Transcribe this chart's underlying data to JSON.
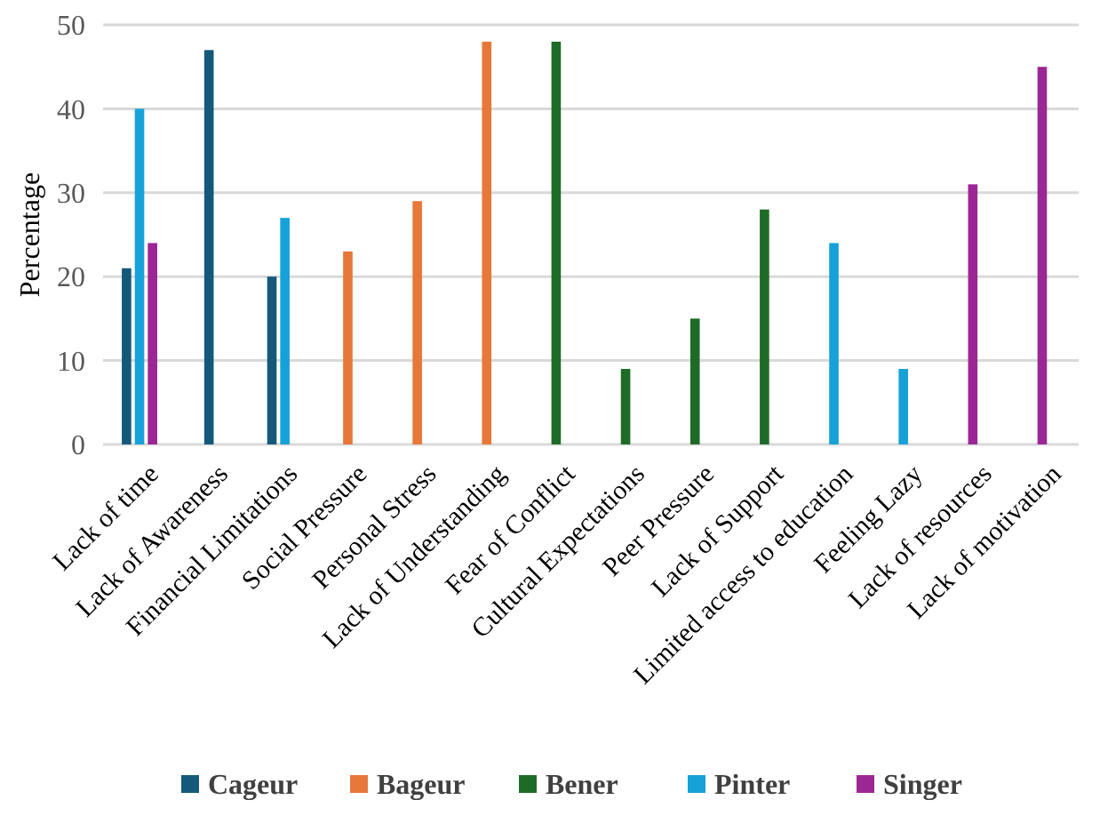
{
  "chart_data": {
    "type": "bar",
    "ylabel": "Percentage",
    "categories": [
      "Lack of time",
      "Lack of Awareness",
      "Financial Limitations",
      "Social Pressure",
      "Personal Stress",
      "Lack of Understanding",
      "Fear of Conflict",
      "Cultural Expectations",
      "Peer Pressure",
      "Lack of Support",
      "Limited access to education",
      "Feeling Lazy",
      "Lack of resources",
      "Lack of motivation"
    ],
    "series": [
      {
        "name": "Cageur",
        "color": "#15597a",
        "values": [
          21,
          47,
          20,
          null,
          null,
          null,
          null,
          null,
          null,
          null,
          null,
          null,
          null,
          null
        ]
      },
      {
        "name": "Bageur",
        "color": "#e8773a",
        "values": [
          null,
          null,
          null,
          23,
          29,
          48,
          null,
          null,
          null,
          null,
          null,
          null,
          null,
          null
        ]
      },
      {
        "name": "Bener",
        "color": "#1e6b28",
        "values": [
          null,
          null,
          null,
          null,
          null,
          null,
          48,
          9,
          15,
          28,
          null,
          null,
          null,
          null
        ]
      },
      {
        "name": "Pinter",
        "color": "#16a2d8",
        "values": [
          40,
          null,
          27,
          null,
          null,
          null,
          null,
          null,
          null,
          null,
          24,
          9,
          null,
          null
        ]
      },
      {
        "name": "Singer",
        "color": "#9b2795",
        "values": [
          24,
          null,
          null,
          null,
          null,
          null,
          null,
          null,
          null,
          null,
          null,
          null,
          31,
          45
        ]
      }
    ],
    "ylim": [
      0,
      50
    ],
    "yticks": [
      0,
      10,
      20,
      30,
      40,
      50
    ],
    "grid": "y",
    "legend": "bottom"
  }
}
